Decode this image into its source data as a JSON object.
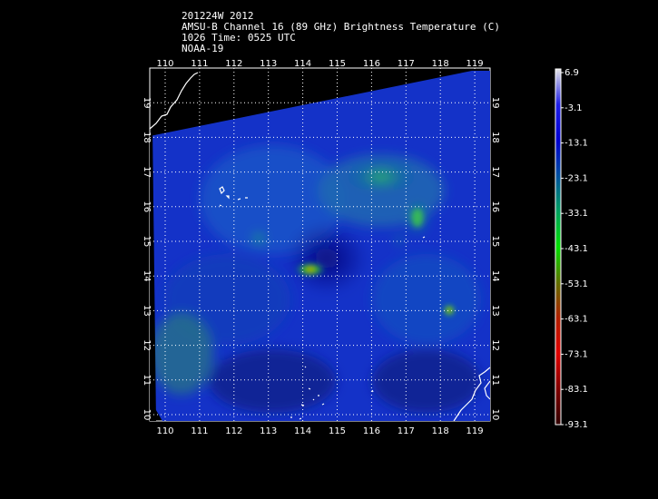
{
  "header": {
    "line1": "201224W 2012",
    "line2": "AMSU-B Channel 16 (89 GHz) Brightness Temperature (C)",
    "line3": "1026 Time: 0525 UTC",
    "line4": "NOAA-19"
  },
  "map": {
    "lon_labels": [
      "110",
      "111",
      "112",
      "113",
      "114",
      "115",
      "116",
      "117",
      "118",
      "119"
    ],
    "lat_labels": [
      "10",
      "11",
      "12",
      "13",
      "14",
      "15",
      "16",
      "17",
      "18",
      "19"
    ],
    "grid": "dotted",
    "colors": {
      "background": "#000000",
      "grid": "#ffffff",
      "coastline": "#ffffff"
    }
  },
  "colorbar": {
    "labels": [
      "6.9",
      "-3.1",
      "-13.1",
      "-23.1",
      "-33.1",
      "-43.1",
      "-53.1",
      "-63.1",
      "-73.1",
      "-83.1",
      "-93.1"
    ],
    "stops": [
      "#e6e6e6",
      "#1f1fe6",
      "#0000d0",
      "#004fa0",
      "#00a060",
      "#00e000",
      "#607000",
      "#b02000",
      "#e00000",
      "#800000",
      "#300000"
    ]
  }
}
